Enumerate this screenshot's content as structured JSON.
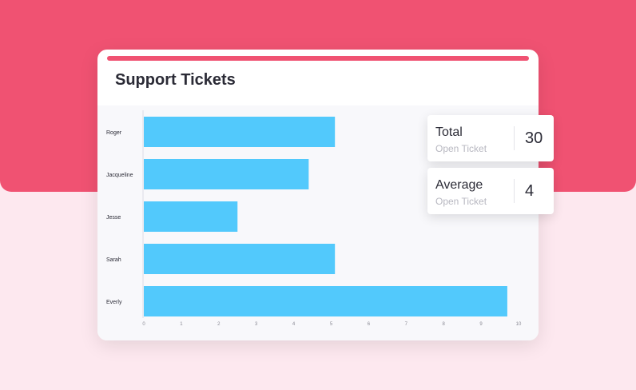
{
  "card": {
    "title": "Support Tickets"
  },
  "stats": {
    "total": {
      "label": "Total",
      "sublabel": "Open Ticket",
      "value": "30"
    },
    "average": {
      "label": "Average",
      "sublabel": "Open Ticket",
      "value": "4"
    }
  },
  "colors": {
    "accent": "#f05272",
    "bar": "#52c9fc",
    "background": "#fde8ef"
  },
  "chart_data": {
    "type": "bar",
    "orientation": "horizontal",
    "categories": [
      "Roger",
      "Jacqueline",
      "Jesse",
      "Sarah",
      "Everly"
    ],
    "values": [
      5.1,
      4.4,
      2.5,
      5.1,
      9.7
    ],
    "xlim": [
      0,
      10
    ],
    "xticks": [
      0,
      1,
      2,
      3,
      4,
      5,
      6,
      7,
      8,
      9,
      10
    ],
    "title": "Support Tickets"
  }
}
